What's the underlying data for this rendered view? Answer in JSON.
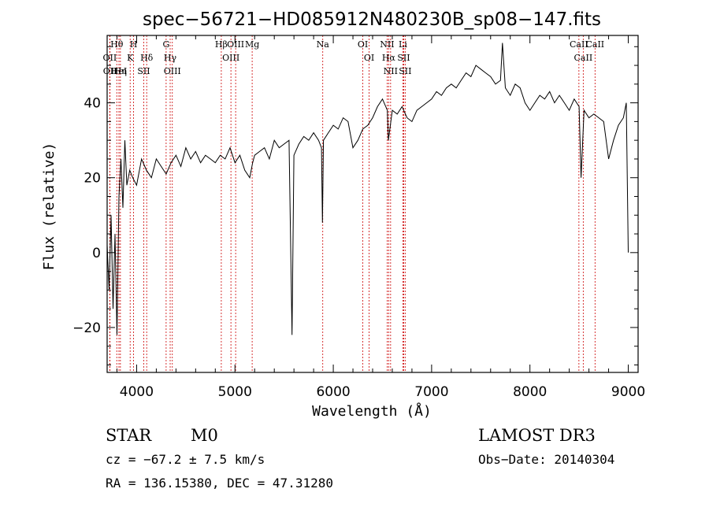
{
  "chart_data": {
    "type": "line",
    "title": "spec−56721−HD085912N480230B_sp08−147.fits",
    "xlabel": "Wavelength (Å)",
    "ylabel": "Flux (relative)",
    "xlim": [
      3700,
      9100
    ],
    "ylim": [
      -32,
      58
    ],
    "xticks": [
      4000,
      5000,
      6000,
      7000,
      8000,
      9000
    ],
    "yticks": [
      -20,
      0,
      20,
      40
    ],
    "grid": false,
    "legend": "none",
    "series": [
      {
        "x": [
          3700,
          3720,
          3740,
          3760,
          3780,
          3800,
          3820,
          3840,
          3860,
          3880,
          3900,
          3930,
          3960,
          4000,
          4050,
          4100,
          4150,
          4200,
          4250,
          4300,
          4350,
          4400,
          4450,
          4500,
          4550,
          4600,
          4650,
          4700,
          4750,
          4800,
          4850,
          4900,
          4950,
          5000,
          5050,
          5100,
          5150,
          5180,
          5200,
          5250,
          5300,
          5350,
          5400,
          5450,
          5500,
          5550,
          5580,
          5600,
          5650,
          5700,
          5750,
          5800,
          5850,
          5880,
          5890,
          5900,
          5950,
          6000,
          6050,
          6100,
          6150,
          6200,
          6250,
          6300,
          6350,
          6400,
          6450,
          6500,
          6550,
          6560,
          6600,
          6650,
          6700,
          6750,
          6800,
          6850,
          6900,
          6950,
          7000,
          7050,
          7100,
          7150,
          7200,
          7250,
          7300,
          7350,
          7400,
          7450,
          7500,
          7550,
          7600,
          7650,
          7700,
          7720,
          7750,
          7800,
          7850,
          7900,
          7950,
          8000,
          8050,
          8100,
          8150,
          8200,
          8250,
          8300,
          8350,
          8400,
          8450,
          8500,
          8520,
          8550,
          8600,
          8650,
          8700,
          8750,
          8800,
          8850,
          8900,
          8950,
          8980,
          9000
        ],
        "y": [
          2,
          -10,
          10,
          -15,
          5,
          -22,
          15,
          25,
          12,
          30,
          18,
          22,
          20,
          18,
          25,
          22,
          20,
          25,
          23,
          21,
          24,
          26,
          23,
          28,
          25,
          27,
          24,
          26,
          25,
          24,
          26,
          25,
          28,
          24,
          26,
          22,
          20,
          24,
          26,
          27,
          28,
          25,
          30,
          28,
          29,
          30,
          -22,
          26,
          29,
          31,
          30,
          32,
          30,
          28,
          8,
          30,
          32,
          34,
          33,
          36,
          35,
          28,
          30,
          33,
          34,
          36,
          39,
          41,
          38,
          30,
          38,
          37,
          39,
          36,
          35,
          38,
          39,
          40,
          41,
          43,
          42,
          44,
          45,
          44,
          46,
          48,
          47,
          50,
          49,
          48,
          47,
          45,
          46,
          56,
          44,
          42,
          45,
          44,
          40,
          38,
          40,
          42,
          41,
          43,
          40,
          42,
          40,
          38,
          41,
          39,
          20,
          38,
          36,
          37,
          36,
          35,
          25,
          30,
          34,
          36,
          40,
          0
        ]
      }
    ],
    "line_markers": [
      {
        "label": "Hθ",
        "wavelength": 3798
      },
      {
        "label": "OII",
        "wavelength": 3727
      },
      {
        "label": "OII",
        "wavelength": 3729
      },
      {
        "label": "HeI",
        "wavelength": 3820
      },
      {
        "label": "Hη",
        "wavelength": 3835
      },
      {
        "label": "K",
        "wavelength": 3934
      },
      {
        "label": "H",
        "wavelength": 3969
      },
      {
        "label": "SII",
        "wavelength": 4072
      },
      {
        "label": "Hδ",
        "wavelength": 4102
      },
      {
        "label": "G",
        "wavelength": 4300
      },
      {
        "label": "Hγ",
        "wavelength": 4341
      },
      {
        "label": "OIII",
        "wavelength": 4363
      },
      {
        "label": "Hβ",
        "wavelength": 4861
      },
      {
        "label": "OIII",
        "wavelength": 4959
      },
      {
        "label": "OIII",
        "wavelength": 5007
      },
      {
        "label": "Mg",
        "wavelength": 5175
      },
      {
        "label": "Na",
        "wavelength": 5893
      },
      {
        "label": "OI",
        "wavelength": 6300
      },
      {
        "label": "OI",
        "wavelength": 6364
      },
      {
        "label": "NII",
        "wavelength": 6548
      },
      {
        "label": "Hα",
        "wavelength": 6563
      },
      {
        "label": "NII",
        "wavelength": 6583
      },
      {
        "label": "Li",
        "wavelength": 6708
      },
      {
        "label": "SII",
        "wavelength": 6716
      },
      {
        "label": "SII",
        "wavelength": 6731
      },
      {
        "label": "CaII",
        "wavelength": 8498
      },
      {
        "label": "CaII",
        "wavelength": 8542
      },
      {
        "label": "CaII",
        "wavelength": 8662
      }
    ],
    "marker_color": "#cc0000",
    "line_color": "#000000"
  },
  "info": {
    "class": "STAR",
    "subclass": "M0",
    "survey": "LAMOST DR3",
    "cz": "cz = −67.2 ± 7.5 km/s",
    "obs_date": "Obs−Date: 20140304",
    "coords": "RA = 136.15380, DEC =  47.31280"
  }
}
